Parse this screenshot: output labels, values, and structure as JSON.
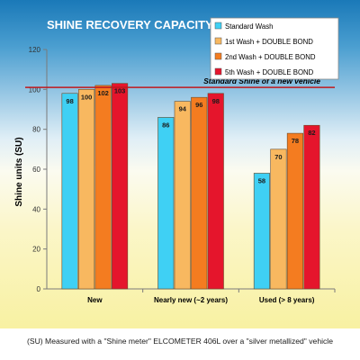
{
  "chart_data": {
    "type": "bar",
    "title": "SHINE RECOVERY CAPACITY",
    "ylabel": "Shine units  (SU)",
    "xlabel": "",
    "ylim": [
      0,
      120
    ],
    "yticks": [
      0,
      20,
      40,
      60,
      80,
      100,
      120
    ],
    "categories": [
      "New",
      "Nearly new (~2 years)",
      "Used (> 8 years)"
    ],
    "series": [
      {
        "name": "Standard Wash",
        "color": "#3fd0f4",
        "values": [
          98,
          86,
          58
        ]
      },
      {
        "name": "1st Wash + DOUBLE BOND",
        "color": "#f8b860",
        "values": [
          100,
          94,
          70
        ]
      },
      {
        "name": "2nd Wash + DOUBLE BOND",
        "color": "#f47c20",
        "values": [
          102,
          96,
          78
        ]
      },
      {
        "name": "5th Wash + DOUBLE BOND",
        "color": "#e5152c",
        "values": [
          103,
          98,
          82
        ]
      }
    ],
    "reference_line": {
      "value": 101,
      "label": "Standard Shine of a new vehicle",
      "color": "#c0181e"
    },
    "legend_position": "top-right",
    "grid": false,
    "axis_color": "#7a7a7a"
  },
  "caption": "(SU) Measured with a \"Shine meter\" ELCOMETER 406L over a \"silver metallized\" vehicle"
}
